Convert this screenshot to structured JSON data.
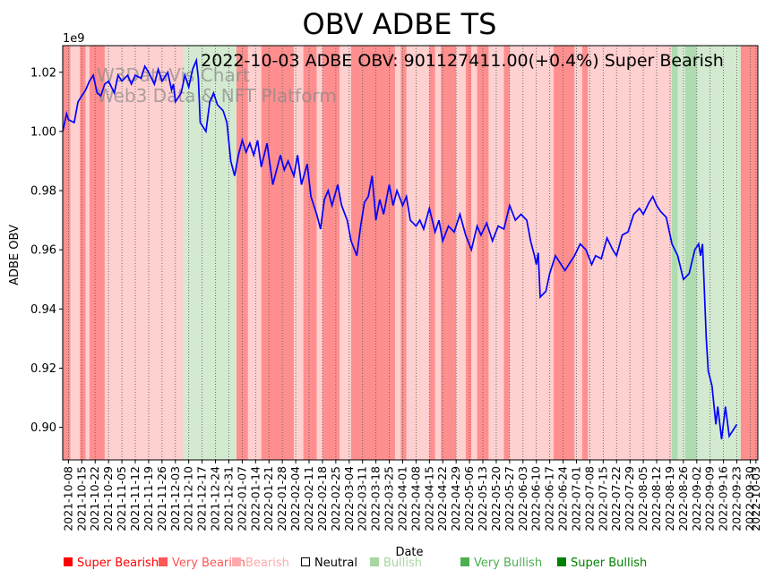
{
  "chart_data": {
    "type": "line",
    "title": "OBV ADBE TS",
    "annotation": "2022-10-03 ADBE OBV: 901127411.00(+0.4%) Super Bearish",
    "watermark": [
      "W3DataVis Chart",
      "Web3 Data & NFT Platform"
    ],
    "xlabel": "Date",
    "ylabel": "ADBE OBV",
    "y_multiplier_label": "1e9",
    "ylim": [
      0.889,
      1.029
    ],
    "yticks": [
      0.9,
      0.92,
      0.94,
      0.96,
      0.98,
      1.0,
      1.02
    ],
    "ytick_labels": [
      "0.90",
      "0.92",
      "0.94",
      "0.96",
      "0.98",
      "1.00",
      "1.02"
    ],
    "xlim": [
      "2021-10-05",
      "2022-10-04"
    ],
    "xtick_labels": [
      "2021-10-08",
      "2021-10-15",
      "2021-10-22",
      "2021-10-29",
      "2021-11-05",
      "2021-11-12",
      "2021-11-19",
      "2021-11-26",
      "2021-12-03",
      "2021-12-10",
      "2021-12-17",
      "2021-12-24",
      "2021-12-31",
      "2022-01-07",
      "2022-01-14",
      "2022-01-21",
      "2022-01-28",
      "2022-02-04",
      "2022-02-11",
      "2022-02-18",
      "2022-02-25",
      "2022-03-04",
      "2022-03-11",
      "2022-03-18",
      "2022-03-25",
      "2022-04-01",
      "2022-04-08",
      "2022-04-15",
      "2022-04-22",
      "2022-04-29",
      "2022-05-06",
      "2022-05-13",
      "2022-05-20",
      "2022-05-27",
      "2022-06-03",
      "2022-06-10",
      "2022-06-17",
      "2022-06-24",
      "2022-07-01",
      "2022-07-08",
      "2022-07-15",
      "2022-07-22",
      "2022-07-29",
      "2022-08-05",
      "2022-08-12",
      "2022-08-19",
      "2022-08-26",
      "2022-09-02",
      "2022-09-09",
      "2022-09-16",
      "2022-09-23",
      "2022-09-30",
      "2022-10-03"
    ],
    "grid": "vertical-dotted",
    "series": [
      {
        "name": "",
        "color": "#0000ff",
        "points": [
          [
            "2021-10-05",
            1.0
          ],
          [
            "2021-10-07",
            1.006
          ],
          [
            "2021-10-08",
            1.004
          ],
          [
            "2021-10-11",
            1.003
          ],
          [
            "2021-10-13",
            1.01
          ],
          [
            "2021-10-15",
            1.012
          ],
          [
            "2021-10-17",
            1.014
          ],
          [
            "2021-10-19",
            1.017
          ],
          [
            "2021-10-21",
            1.019
          ],
          [
            "2021-10-23",
            1.013
          ],
          [
            "2021-10-25",
            1.012
          ],
          [
            "2021-10-27",
            1.016
          ],
          [
            "2021-10-29",
            1.017
          ],
          [
            "2021-11-01",
            1.013
          ],
          [
            "2021-11-03",
            1.019
          ],
          [
            "2021-11-05",
            1.017
          ],
          [
            "2021-11-08",
            1.019
          ],
          [
            "2021-11-10",
            1.016
          ],
          [
            "2021-11-12",
            1.019
          ],
          [
            "2021-11-15",
            1.018
          ],
          [
            "2021-11-17",
            1.022
          ],
          [
            "2021-11-19",
            1.02
          ],
          [
            "2021-11-22",
            1.016
          ],
          [
            "2021-11-24",
            1.021
          ],
          [
            "2021-11-26",
            1.017
          ],
          [
            "2021-11-29",
            1.02
          ],
          [
            "2021-12-01",
            1.014
          ],
          [
            "2021-12-02",
            1.016
          ],
          [
            "2021-12-03",
            1.01
          ],
          [
            "2021-12-06",
            1.013
          ],
          [
            "2021-12-08",
            1.019
          ],
          [
            "2021-12-10",
            1.015
          ],
          [
            "2021-12-12",
            1.021
          ],
          [
            "2021-12-14",
            1.024
          ],
          [
            "2021-12-15",
            1.018
          ],
          [
            "2021-12-16",
            1.003
          ],
          [
            "2021-12-19",
            1.0
          ],
          [
            "2021-12-21",
            1.01
          ],
          [
            "2021-12-23",
            1.013
          ],
          [
            "2021-12-25",
            1.009
          ],
          [
            "2021-12-28",
            1.007
          ],
          [
            "2021-12-30",
            1.003
          ],
          [
            "2022-01-01",
            0.99
          ],
          [
            "2022-01-03",
            0.985
          ],
          [
            "2022-01-05",
            0.992
          ],
          [
            "2022-01-07",
            0.997
          ],
          [
            "2022-01-09",
            0.993
          ],
          [
            "2022-01-11",
            0.996
          ],
          [
            "2022-01-13",
            0.992
          ],
          [
            "2022-01-15",
            0.997
          ],
          [
            "2022-01-17",
            0.988
          ],
          [
            "2022-01-20",
            0.996
          ],
          [
            "2022-01-23",
            0.982
          ],
          [
            "2022-01-25",
            0.987
          ],
          [
            "2022-01-27",
            0.992
          ],
          [
            "2022-01-29",
            0.987
          ],
          [
            "2022-01-31",
            0.99
          ],
          [
            "2022-02-03",
            0.985
          ],
          [
            "2022-02-05",
            0.992
          ],
          [
            "2022-02-07",
            0.982
          ],
          [
            "2022-02-10",
            0.989
          ],
          [
            "2022-02-12",
            0.978
          ],
          [
            "2022-02-15",
            0.972
          ],
          [
            "2022-02-17",
            0.967
          ],
          [
            "2022-02-19",
            0.977
          ],
          [
            "2022-02-21",
            0.98
          ],
          [
            "2022-02-23",
            0.975
          ],
          [
            "2022-02-26",
            0.982
          ],
          [
            "2022-02-28",
            0.975
          ],
          [
            "2022-03-03",
            0.97
          ],
          [
            "2022-03-05",
            0.963
          ],
          [
            "2022-03-08",
            0.958
          ],
          [
            "2022-03-10",
            0.968
          ],
          [
            "2022-03-12",
            0.976
          ],
          [
            "2022-03-14",
            0.978
          ],
          [
            "2022-03-16",
            0.985
          ],
          [
            "2022-03-18",
            0.97
          ],
          [
            "2022-03-20",
            0.977
          ],
          [
            "2022-03-22",
            0.972
          ],
          [
            "2022-03-25",
            0.982
          ],
          [
            "2022-03-27",
            0.975
          ],
          [
            "2022-03-29",
            0.98
          ],
          [
            "2022-04-01",
            0.975
          ],
          [
            "2022-04-03",
            0.978
          ],
          [
            "2022-04-05",
            0.97
          ],
          [
            "2022-04-08",
            0.968
          ],
          [
            "2022-04-10",
            0.97
          ],
          [
            "2022-04-12",
            0.967
          ],
          [
            "2022-04-15",
            0.974
          ],
          [
            "2022-04-18",
            0.966
          ],
          [
            "2022-04-20",
            0.97
          ],
          [
            "2022-04-22",
            0.963
          ],
          [
            "2022-04-25",
            0.968
          ],
          [
            "2022-04-28",
            0.966
          ],
          [
            "2022-05-01",
            0.972
          ],
          [
            "2022-05-04",
            0.965
          ],
          [
            "2022-05-07",
            0.96
          ],
          [
            "2022-05-10",
            0.968
          ],
          [
            "2022-05-12",
            0.965
          ],
          [
            "2022-05-15",
            0.969
          ],
          [
            "2022-05-18",
            0.963
          ],
          [
            "2022-05-21",
            0.968
          ],
          [
            "2022-05-24",
            0.967
          ],
          [
            "2022-05-27",
            0.975
          ],
          [
            "2022-05-30",
            0.97
          ],
          [
            "2022-06-02",
            0.972
          ],
          [
            "2022-06-05",
            0.97
          ],
          [
            "2022-06-07",
            0.963
          ],
          [
            "2022-06-09",
            0.958
          ],
          [
            "2022-06-10",
            0.955
          ],
          [
            "2022-06-11",
            0.959
          ],
          [
            "2022-06-12",
            0.944
          ],
          [
            "2022-06-15",
            0.946
          ],
          [
            "2022-06-17",
            0.952
          ],
          [
            "2022-06-20",
            0.958
          ],
          [
            "2022-06-23",
            0.955
          ],
          [
            "2022-06-25",
            0.953
          ],
          [
            "2022-06-27",
            0.955
          ],
          [
            "2022-06-30",
            0.958
          ],
          [
            "2022-07-03",
            0.962
          ],
          [
            "2022-07-06",
            0.96
          ],
          [
            "2022-07-09",
            0.955
          ],
          [
            "2022-07-11",
            0.958
          ],
          [
            "2022-07-14",
            0.957
          ],
          [
            "2022-07-17",
            0.964
          ],
          [
            "2022-07-20",
            0.96
          ],
          [
            "2022-07-22",
            0.958
          ],
          [
            "2022-07-25",
            0.965
          ],
          [
            "2022-07-28",
            0.966
          ],
          [
            "2022-07-31",
            0.972
          ],
          [
            "2022-08-03",
            0.974
          ],
          [
            "2022-08-05",
            0.972
          ],
          [
            "2022-08-08",
            0.976
          ],
          [
            "2022-08-10",
            0.978
          ],
          [
            "2022-08-12",
            0.975
          ],
          [
            "2022-08-14",
            0.973
          ],
          [
            "2022-08-17",
            0.971
          ],
          [
            "2022-08-20",
            0.962
          ],
          [
            "2022-08-23",
            0.958
          ],
          [
            "2022-08-26",
            0.95
          ],
          [
            "2022-08-29",
            0.952
          ],
          [
            "2022-09-01",
            0.96
          ],
          [
            "2022-09-03",
            0.962
          ],
          [
            "2022-09-04",
            0.958
          ],
          [
            "2022-09-05",
            0.962
          ],
          [
            "2022-09-07",
            0.93
          ],
          [
            "2022-09-08",
            0.919
          ],
          [
            "2022-09-10",
            0.914
          ],
          [
            "2022-09-12",
            0.901
          ],
          [
            "2022-09-13",
            0.907
          ],
          [
            "2022-09-15",
            0.896
          ],
          [
            "2022-09-17",
            0.907
          ],
          [
            "2022-09-19",
            0.897
          ],
          [
            "2022-09-21",
            0.899
          ],
          [
            "2022-09-23",
            0.901
          ]
        ]
      }
    ],
    "regime_colors": {
      "Super Bearish": "#ff0000",
      "Very Bearish": "#ff5555",
      "Bearish": "#ff9999",
      "Neutral": "#ffffff",
      "Bullish": "#a8d5a2",
      "Very Bullish": "#4caf50",
      "Super Bullish": "#008000"
    },
    "regime_bands": [
      [
        "2021-10-05",
        "2021-10-09",
        "Very Bearish"
      ],
      [
        "2021-10-09",
        "2021-10-14",
        "Bearish"
      ],
      [
        "2021-10-14",
        "2021-10-17",
        "Very Bearish"
      ],
      [
        "2021-10-17",
        "2021-10-19",
        "Bearish"
      ],
      [
        "2021-10-19",
        "2021-10-27",
        "Very Bearish"
      ],
      [
        "2021-10-27",
        "2021-12-07",
        "Bearish"
      ],
      [
        "2021-12-07",
        "2022-01-04",
        "Bullish"
      ],
      [
        "2022-01-04",
        "2022-01-10",
        "Very Bearish"
      ],
      [
        "2022-01-10",
        "2022-01-17",
        "Bearish"
      ],
      [
        "2022-01-17",
        "2022-02-03",
        "Very Bearish"
      ],
      [
        "2022-02-03",
        "2022-02-08",
        "Bearish"
      ],
      [
        "2022-02-08",
        "2022-02-15",
        "Very Bearish"
      ],
      [
        "2022-02-15",
        "2022-02-18",
        "Bearish"
      ],
      [
        "2022-02-18",
        "2022-02-27",
        "Very Bearish"
      ],
      [
        "2022-02-27",
        "2022-03-05",
        "Bearish"
      ],
      [
        "2022-03-05",
        "2022-03-28",
        "Very Bearish"
      ],
      [
        "2022-03-28",
        "2022-03-31",
        "Bearish"
      ],
      [
        "2022-03-31",
        "2022-04-03",
        "Very Bearish"
      ],
      [
        "2022-04-03",
        "2022-04-15",
        "Bearish"
      ],
      [
        "2022-04-15",
        "2022-04-18",
        "Very Bearish"
      ],
      [
        "2022-04-18",
        "2022-04-21",
        "Bearish"
      ],
      [
        "2022-04-21",
        "2022-04-29",
        "Very Bearish"
      ],
      [
        "2022-04-29",
        "2022-05-04",
        "Bearish"
      ],
      [
        "2022-05-04",
        "2022-05-07",
        "Very Bearish"
      ],
      [
        "2022-05-07",
        "2022-05-10",
        "Bearish"
      ],
      [
        "2022-05-10",
        "2022-05-16",
        "Very Bearish"
      ],
      [
        "2022-05-16",
        "2022-05-24",
        "Bearish"
      ],
      [
        "2022-05-24",
        "2022-05-27",
        "Very Bearish"
      ],
      [
        "2022-05-27",
        "2022-06-19",
        "Bearish"
      ],
      [
        "2022-06-19",
        "2022-06-30",
        "Very Bearish"
      ],
      [
        "2022-06-30",
        "2022-07-04",
        "Bearish"
      ],
      [
        "2022-07-04",
        "2022-07-07",
        "Very Bearish"
      ],
      [
        "2022-07-07",
        "2022-07-09",
        "Bearish"
      ],
      [
        "2022-07-09",
        "2022-08-20",
        "Bearish"
      ],
      [
        "2022-08-20",
        "2022-08-23",
        "Very Bullish"
      ],
      [
        "2022-08-23",
        "2022-08-27",
        "Bullish"
      ],
      [
        "2022-08-27",
        "2022-09-02",
        "Very Bullish"
      ],
      [
        "2022-09-02",
        "2022-09-25",
        "Bullish"
      ],
      [
        "2022-09-25",
        "2022-10-04",
        "Very Bearish"
      ]
    ],
    "legend": {
      "placement": "bottom",
      "items": [
        {
          "label": "Super Bearish",
          "color": "#ff0000"
        },
        {
          "label": "Very Bearish",
          "color": "#ff5555"
        },
        {
          "label": "Bearish",
          "color": "#ffaaaa"
        },
        {
          "label": "Neutral",
          "color": "#000000"
        },
        {
          "label": "Bullish",
          "color": "#a8d5a2"
        },
        {
          "label": "Very Bullish",
          "color": "#4caf50"
        },
        {
          "label": "Super Bullish",
          "color": "#008000"
        }
      ]
    }
  }
}
